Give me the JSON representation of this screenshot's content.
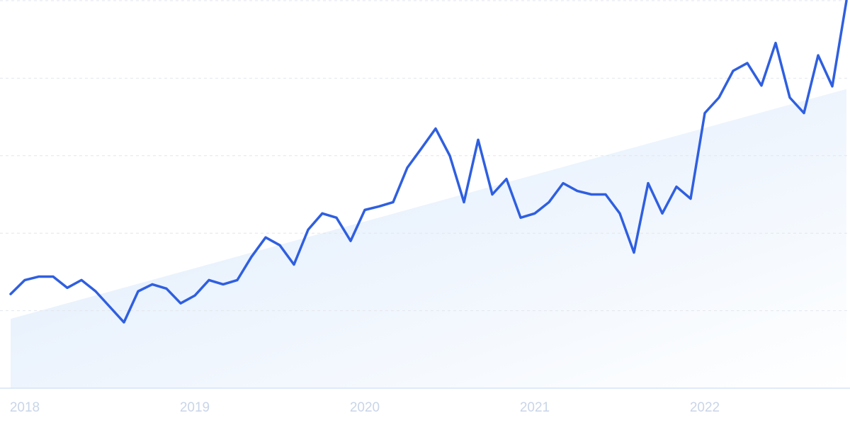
{
  "chart_data": {
    "type": "line",
    "categories": [
      null,
      "2018",
      null,
      null,
      null,
      null,
      null,
      null,
      null,
      null,
      null,
      null,
      null,
      "2019",
      null,
      null,
      null,
      null,
      null,
      null,
      null,
      null,
      null,
      null,
      null,
      "2020",
      null,
      null,
      null,
      null,
      null,
      null,
      null,
      null,
      null,
      null,
      null,
      "2021",
      null,
      null,
      null,
      null,
      null,
      null,
      null,
      null,
      null,
      null,
      null,
      "2022",
      null,
      null,
      null,
      null,
      null,
      null,
      null,
      null,
      null,
      null
    ],
    "values": [
      24.3,
      27.9,
      28.8,
      28.8,
      25.9,
      27.9,
      25.0,
      21.0,
      17.0,
      25.0,
      26.8,
      25.7,
      21.9,
      23.9,
      27.9,
      26.8,
      27.9,
      33.9,
      38.9,
      36.9,
      31.9,
      40.9,
      45.1,
      44.0,
      38.0,
      46.0,
      46.9,
      48.0,
      56.9,
      61.9,
      67.0,
      60.0,
      48.0,
      64.1,
      50.0,
      54.0,
      44.0,
      45.1,
      48.0,
      52.9,
      50.9,
      50.0,
      50.0,
      45.1,
      35.0,
      52.9,
      45.1,
      52.0,
      48.9,
      71.0,
      75.0,
      81.9,
      83.9,
      78.1,
      89.1,
      75.0,
      71.0,
      85.9,
      77.9,
      100
    ],
    "color": "#2f5fe0",
    "trend": [
      17.9,
      77.2
    ],
    "trend_color": "#dceafb",
    "ylim": [
      0,
      100
    ],
    "yticks": [
      20,
      40,
      60,
      80,
      100
    ],
    "grid": true
  }
}
